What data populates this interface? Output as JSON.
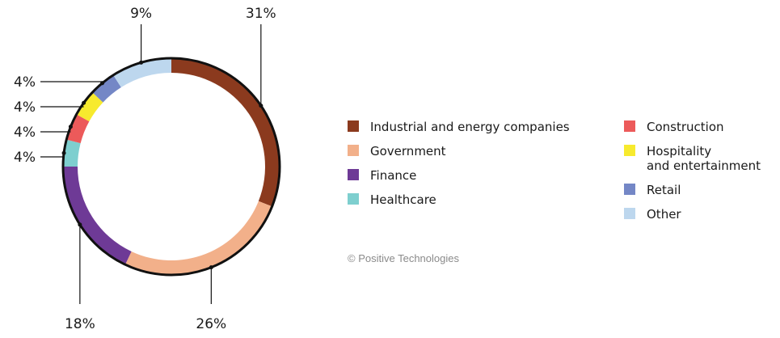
{
  "chart_data": {
    "type": "pie",
    "donut": true,
    "slices": [
      {
        "label": "Industrial and energy companies",
        "value": 31,
        "value_label": "31%",
        "color": "#8B3A1E"
      },
      {
        "label": "Government",
        "value": 26,
        "value_label": "26%",
        "color": "#F2B08A"
      },
      {
        "label": "Finance",
        "value": 18,
        "value_label": "18%",
        "color": "#6E3A96"
      },
      {
        "label": "Healthcare",
        "value": 4,
        "value_label": "4%",
        "color": "#7ECFCF"
      },
      {
        "label": "Construction",
        "value": 4,
        "value_label": "4%",
        "color": "#EC5A5A"
      },
      {
        "label": "Hospitality\nand entertainment",
        "value": 4,
        "value_label": "4%",
        "color": "#F7EA2E"
      },
      {
        "label": "Retail",
        "value": 4,
        "value_label": "4%",
        "color": "#7487C6"
      },
      {
        "label": "Other",
        "value": 9,
        "value_label": "9%",
        "color": "#BDD7EE"
      }
    ],
    "legend_placement": "right"
  },
  "credit": "© Positive Technologies"
}
